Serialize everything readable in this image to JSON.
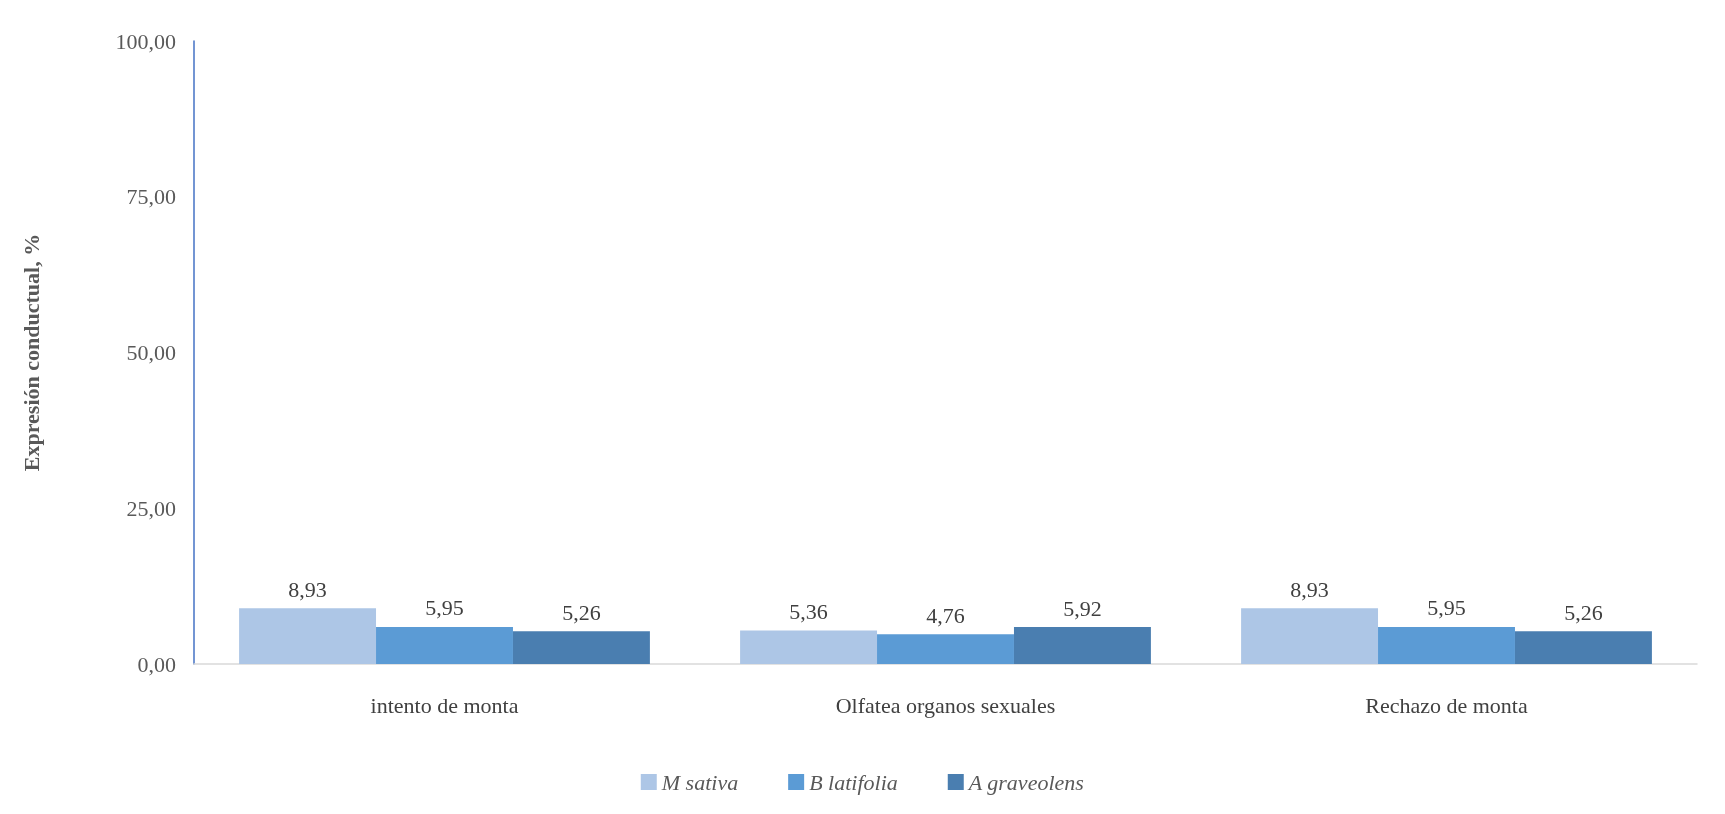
{
  "chart_data": {
    "type": "bar",
    "ylabel": "Expresión conductual, %",
    "categories": [
      "intento de monta",
      "Olfatea organos sexuales",
      "Rechazo de monta"
    ],
    "series": [
      {
        "name": "M sativa",
        "color": "#adc6e6",
        "values": [
          8.93,
          5.36,
          8.93
        ],
        "value_labels": [
          "8,93",
          "5,36",
          "8,93"
        ]
      },
      {
        "name": "B latifolia",
        "color": "#5b9bd5",
        "values": [
          5.95,
          4.76,
          5.95
        ],
        "value_labels": [
          "5,95",
          "4,76",
          "5,95"
        ]
      },
      {
        "name": "A graveolens",
        "color": "#4a7eb0",
        "values": [
          5.26,
          5.92,
          5.26
        ],
        "value_labels": [
          "5,26",
          "5,92",
          "5,26"
        ]
      }
    ],
    "ylim": [
      0,
      100
    ],
    "yticks": [
      {
        "value": 0,
        "label": "0,00"
      },
      {
        "value": 25,
        "label": "25,00"
      },
      {
        "value": 50,
        "label": "50,00"
      },
      {
        "value": 75,
        "label": "75,00"
      },
      {
        "value": 100,
        "label": "100,00"
      }
    ],
    "grid": false,
    "legend": "bottom"
  }
}
